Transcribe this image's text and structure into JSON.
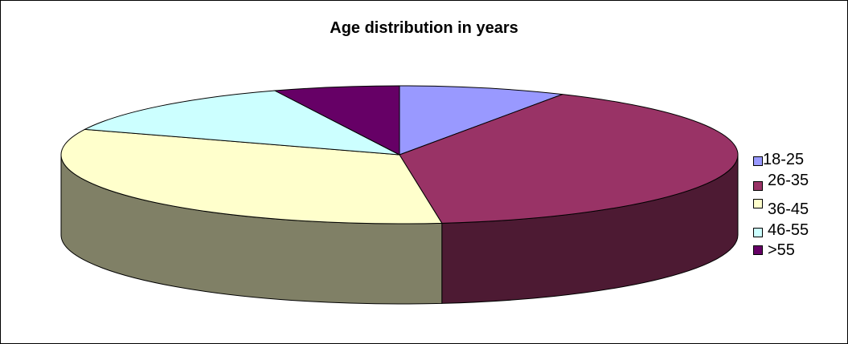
{
  "chart_data": {
    "type": "pie",
    "title": "Age distribution in years",
    "categories": [
      "18-25",
      "26-35",
      "36-45",
      "46-55",
      ">55"
    ],
    "values": [
      8,
      40,
      33,
      13,
      6
    ],
    "colors": [
      "#9999ff",
      "#993366",
      "#ffffcc",
      "#ccffff",
      "#660066"
    ],
    "side_colors": [
      "#4d4d80",
      "#4d1a33",
      "#808066",
      "#668080",
      "#330033"
    ],
    "three_d": true,
    "legend_position": "right"
  }
}
